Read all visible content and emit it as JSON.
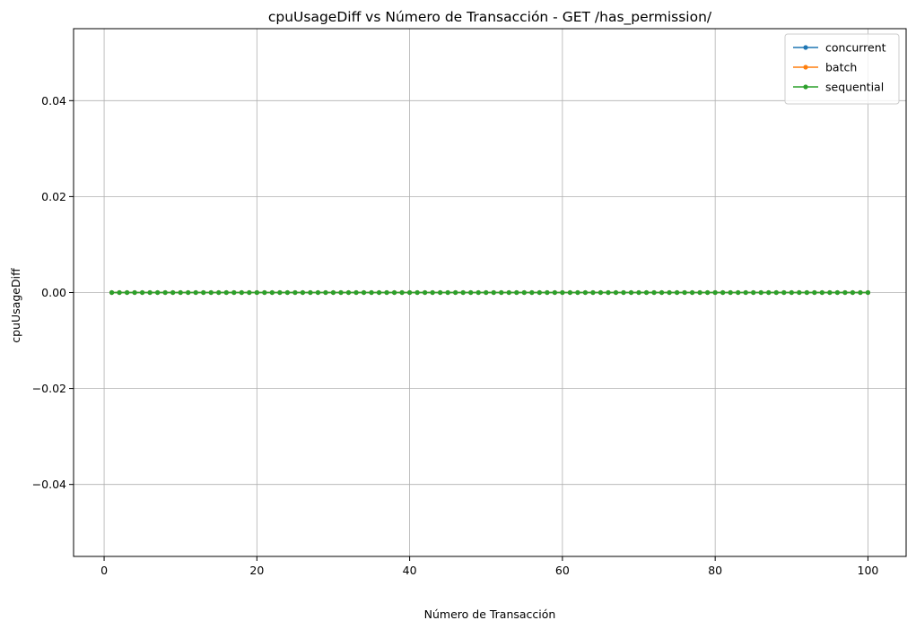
{
  "chart_data": {
    "type": "line",
    "title": "cpuUsageDiff vs Número de Transacción - GET /has_permission/",
    "xlabel": "Número de Transacción",
    "ylabel": "cpuUsageDiff",
    "xlim": [
      -4,
      105
    ],
    "ylim": [
      -0.055,
      0.055
    ],
    "xticks": [
      0,
      20,
      40,
      60,
      80,
      100
    ],
    "xtick_labels": [
      "0",
      "20",
      "40",
      "60",
      "80",
      "100"
    ],
    "yticks": [
      -0.04,
      -0.02,
      0.0,
      0.02,
      0.04
    ],
    "ytick_labels": [
      "−0.04",
      "−0.02",
      "0.00",
      "0.02",
      "0.04"
    ],
    "grid": true,
    "legend_position": "top-right",
    "x": {
      "start": 1,
      "end": 100,
      "step": 1
    },
    "series": [
      {
        "name": "concurrent",
        "color": "#1f77b4",
        "marker": "circle",
        "value": 0
      },
      {
        "name": "batch",
        "color": "#ff7f0e",
        "marker": "circle",
        "value": 0
      },
      {
        "name": "sequential",
        "color": "#2ca02c",
        "marker": "circle",
        "value": 0
      }
    ]
  }
}
